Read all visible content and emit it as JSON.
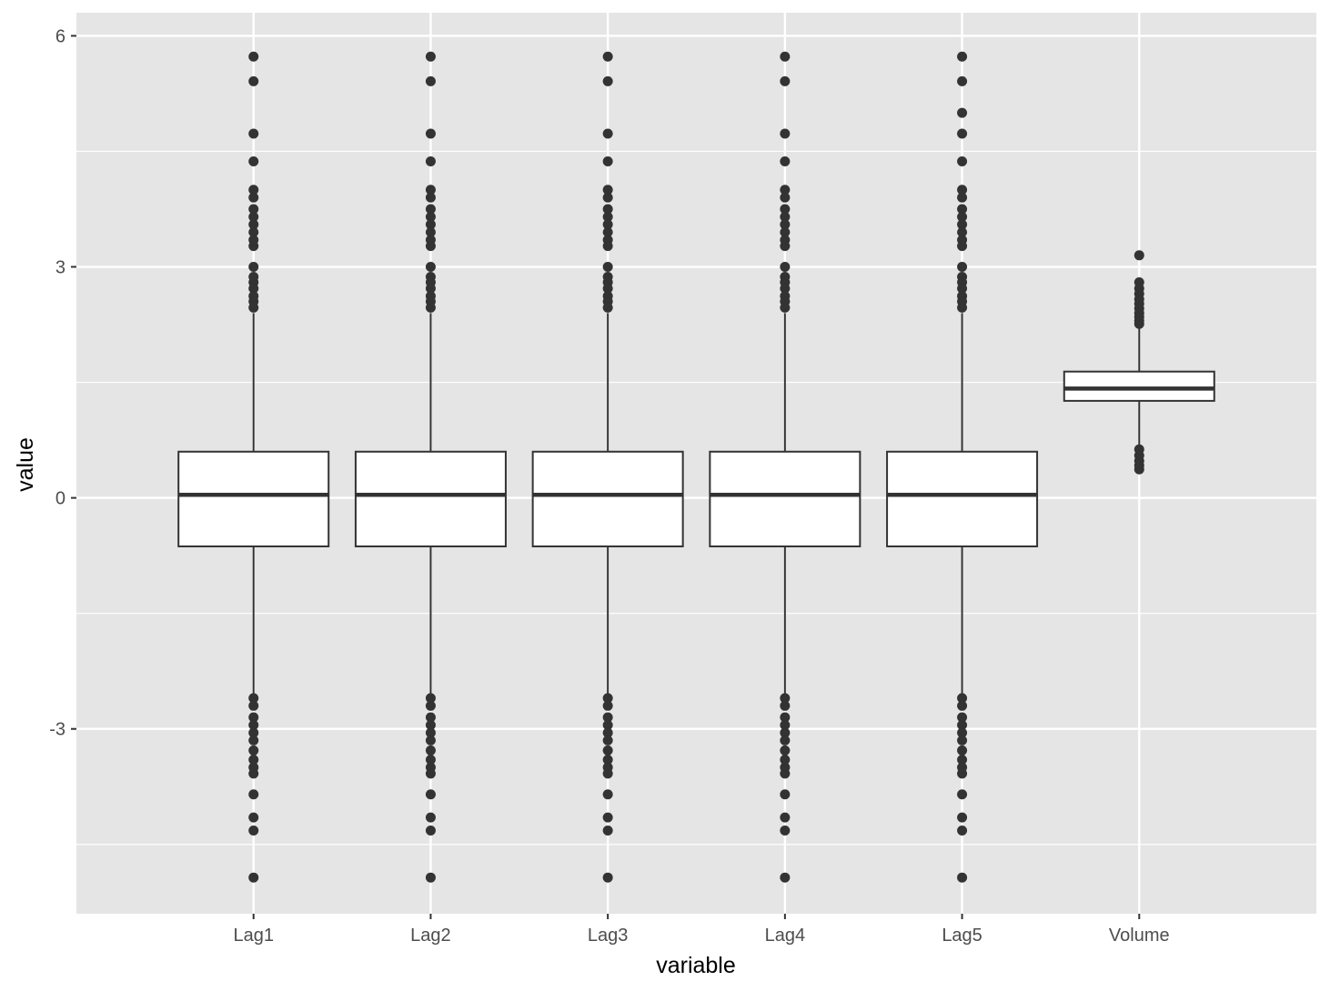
{
  "chart_data": {
    "type": "boxplot",
    "title": "",
    "xlabel": "variable",
    "ylabel": "value",
    "ylim": [
      -5.4,
      6.3
    ],
    "yticks": [
      -3,
      0,
      3,
      6
    ],
    "grid": true,
    "colors": {
      "panel": "#e5e5e5",
      "grid": "#ffffff",
      "box_fill": "#ffffff",
      "stroke": "#333333",
      "tick_text": "#4d4d4d"
    },
    "categories": [
      "Lag1",
      "Lag2",
      "Lag3",
      "Lag4",
      "Lag5",
      "Volume"
    ],
    "boxes": [
      {
        "name": "Lag1",
        "whisker_low": -2.6,
        "q1": -0.63,
        "median": 0.04,
        "q3": 0.6,
        "whisker_high": 2.4,
        "outliers": [
          5.73,
          5.41,
          4.73,
          4.37,
          4.0,
          3.9,
          3.75,
          3.65,
          3.55,
          3.45,
          3.35,
          3.27,
          3.0,
          2.87,
          2.8,
          2.72,
          2.62,
          2.55,
          2.47,
          -2.6,
          -2.7,
          -2.85,
          -2.95,
          -3.05,
          -3.15,
          -3.28,
          -3.4,
          -3.5,
          -3.58,
          -3.85,
          -4.15,
          -4.32,
          -4.93
        ]
      },
      {
        "name": "Lag2",
        "whisker_low": -2.6,
        "q1": -0.63,
        "median": 0.04,
        "q3": 0.6,
        "whisker_high": 2.4,
        "outliers": [
          5.73,
          5.41,
          4.73,
          4.37,
          4.0,
          3.9,
          3.75,
          3.65,
          3.55,
          3.45,
          3.35,
          3.27,
          3.0,
          2.87,
          2.8,
          2.72,
          2.62,
          2.55,
          2.47,
          -2.6,
          -2.7,
          -2.85,
          -2.95,
          -3.05,
          -3.15,
          -3.28,
          -3.4,
          -3.5,
          -3.58,
          -3.85,
          -4.15,
          -4.32,
          -4.93
        ]
      },
      {
        "name": "Lag3",
        "whisker_low": -2.6,
        "q1": -0.63,
        "median": 0.04,
        "q3": 0.6,
        "whisker_high": 2.4,
        "outliers": [
          5.73,
          5.41,
          4.73,
          4.37,
          4.0,
          3.9,
          3.75,
          3.65,
          3.55,
          3.45,
          3.35,
          3.27,
          3.0,
          2.87,
          2.8,
          2.72,
          2.62,
          2.55,
          2.47,
          -2.6,
          -2.7,
          -2.85,
          -2.95,
          -3.05,
          -3.15,
          -3.28,
          -3.4,
          -3.5,
          -3.58,
          -3.85,
          -4.15,
          -4.32,
          -4.93
        ]
      },
      {
        "name": "Lag4",
        "whisker_low": -2.6,
        "q1": -0.63,
        "median": 0.04,
        "q3": 0.6,
        "whisker_high": 2.4,
        "outliers": [
          5.73,
          5.41,
          4.73,
          4.37,
          4.0,
          3.9,
          3.75,
          3.65,
          3.55,
          3.45,
          3.35,
          3.27,
          3.0,
          2.87,
          2.8,
          2.72,
          2.62,
          2.55,
          2.47,
          -2.6,
          -2.7,
          -2.85,
          -2.95,
          -3.05,
          -3.15,
          -3.28,
          -3.4,
          -3.5,
          -3.58,
          -3.85,
          -4.15,
          -4.32,
          -4.93
        ]
      },
      {
        "name": "Lag5",
        "whisker_low": -2.6,
        "q1": -0.63,
        "median": 0.04,
        "q3": 0.6,
        "whisker_high": 2.4,
        "outliers": [
          5.73,
          5.41,
          5.0,
          4.73,
          4.37,
          4.0,
          3.9,
          3.75,
          3.65,
          3.55,
          3.45,
          3.35,
          3.27,
          3.0,
          2.87,
          2.8,
          2.72,
          2.62,
          2.55,
          2.47,
          -2.6,
          -2.7,
          -2.85,
          -2.95,
          -3.05,
          -3.15,
          -3.28,
          -3.4,
          -3.5,
          -3.58,
          -3.85,
          -4.15,
          -4.32,
          -4.93
        ]
      },
      {
        "name": "Volume",
        "whisker_low": 0.66,
        "q1": 1.26,
        "median": 1.42,
        "q3": 1.64,
        "whisker_high": 2.22,
        "outliers": [
          3.15,
          2.8,
          2.72,
          2.65,
          2.58,
          2.52,
          2.46,
          2.4,
          2.35,
          2.3,
          2.26,
          0.63,
          0.55,
          0.48,
          0.42,
          0.37
        ]
      }
    ]
  }
}
